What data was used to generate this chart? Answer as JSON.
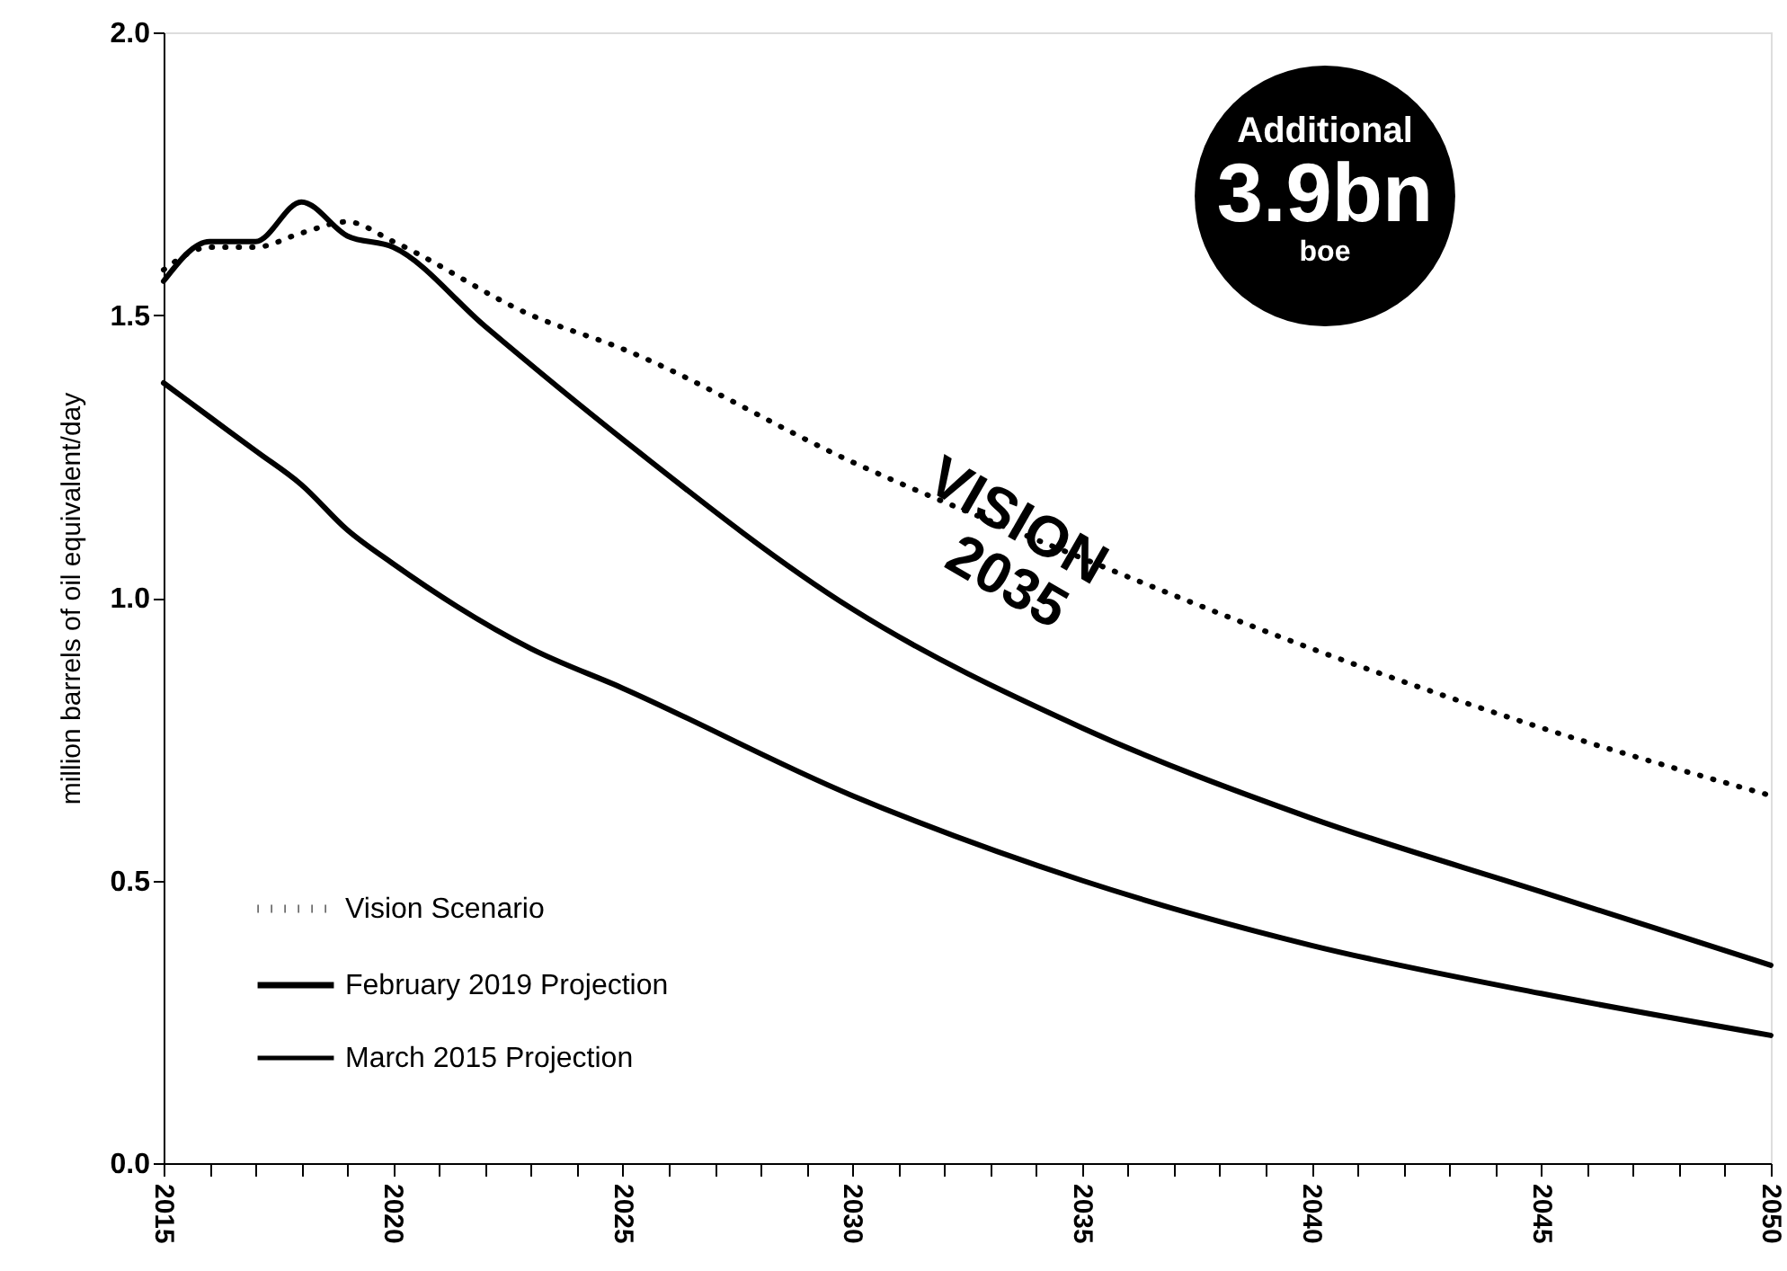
{
  "chart_data": {
    "type": "line",
    "ylabel": "million barrels of oil equivalent/day",
    "xlim": [
      2015,
      2050
    ],
    "ylim": [
      0,
      2.0
    ],
    "xticks": [
      2015,
      {
        "value": 2016,
        "label": null
      },
      {
        "value": 2017,
        "label": null
      },
      {
        "value": 2018,
        "label": null
      },
      {
        "value": 2019,
        "label": null
      },
      2020,
      {
        "value": 2021,
        "label": null
      },
      {
        "value": 2022,
        "label": null
      },
      {
        "value": 2023,
        "label": null
      },
      {
        "value": 2024,
        "label": null
      },
      2025,
      {
        "value": 2026,
        "label": null
      },
      {
        "value": 2027,
        "label": null
      },
      {
        "value": 2028,
        "label": null
      },
      {
        "value": 2029,
        "label": null
      },
      2030,
      {
        "value": 2031,
        "label": null
      },
      {
        "value": 2032,
        "label": null
      },
      {
        "value": 2033,
        "label": null
      },
      {
        "value": 2034,
        "label": null
      },
      2035,
      {
        "value": 2036,
        "label": null
      },
      {
        "value": 2037,
        "label": null
      },
      {
        "value": 2038,
        "label": null
      },
      {
        "value": 2039,
        "label": null
      },
      2040,
      {
        "value": 2041,
        "label": null
      },
      {
        "value": 2042,
        "label": null
      },
      {
        "value": 2043,
        "label": null
      },
      {
        "value": 2044,
        "label": null
      },
      2045,
      {
        "value": 2046,
        "label": null
      },
      {
        "value": 2047,
        "label": null
      },
      {
        "value": 2048,
        "label": null
      },
      {
        "value": 2049,
        "label": null
      },
      2050
    ],
    "yticks": [
      {
        "value": 0,
        "label": "0.0"
      },
      0.5,
      {
        "value": 1,
        "label": "1.0"
      },
      1.5,
      {
        "value": 2,
        "label": "2.0"
      }
    ],
    "grid": false,
    "legend": "bottom left",
    "marker": "none",
    "series": [
      {
        "name": "Vision Scenario",
        "color": "#000000",
        "line_style": "dotted",
        "x": [
          2015,
          2016,
          2017,
          2018,
          2019,
          2020,
          2023,
          2025,
          2030,
          2035,
          2040,
          2045,
          2050
        ],
        "values": [
          1.58,
          1.62,
          1.62,
          1.645,
          1.665,
          1.63,
          1.5,
          1.44,
          1.24,
          1.07,
          0.91,
          0.77,
          0.65
        ]
      },
      {
        "name": "February 2019 Projection",
        "color": "#000000",
        "line_style": "solid",
        "x": [
          2015,
          2016,
          2017,
          2018,
          2019,
          2020,
          2022,
          2025,
          2030,
          2035,
          2040,
          2045,
          2050
        ],
        "values": [
          1.56,
          1.63,
          1.63,
          1.7,
          1.64,
          1.62,
          1.48,
          1.28,
          0.98,
          0.77,
          0.61,
          0.48,
          0.35
        ]
      },
      {
        "name": "March 2015 Projection",
        "color": "#000000",
        "line_style": "solid",
        "x": [
          2015,
          2016,
          2017,
          2018,
          2019,
          2020,
          2023,
          2025,
          2030,
          2035,
          2040,
          2045,
          2050
        ],
        "values": [
          1.38,
          1.32,
          1.26,
          1.2,
          1.12,
          1.06,
          0.91,
          0.84,
          0.65,
          0.5,
          0.385,
          0.3,
          0.226
        ]
      }
    ],
    "annotations": [
      "Additional 3.9bn boe",
      "VISION 2035"
    ]
  }
}
